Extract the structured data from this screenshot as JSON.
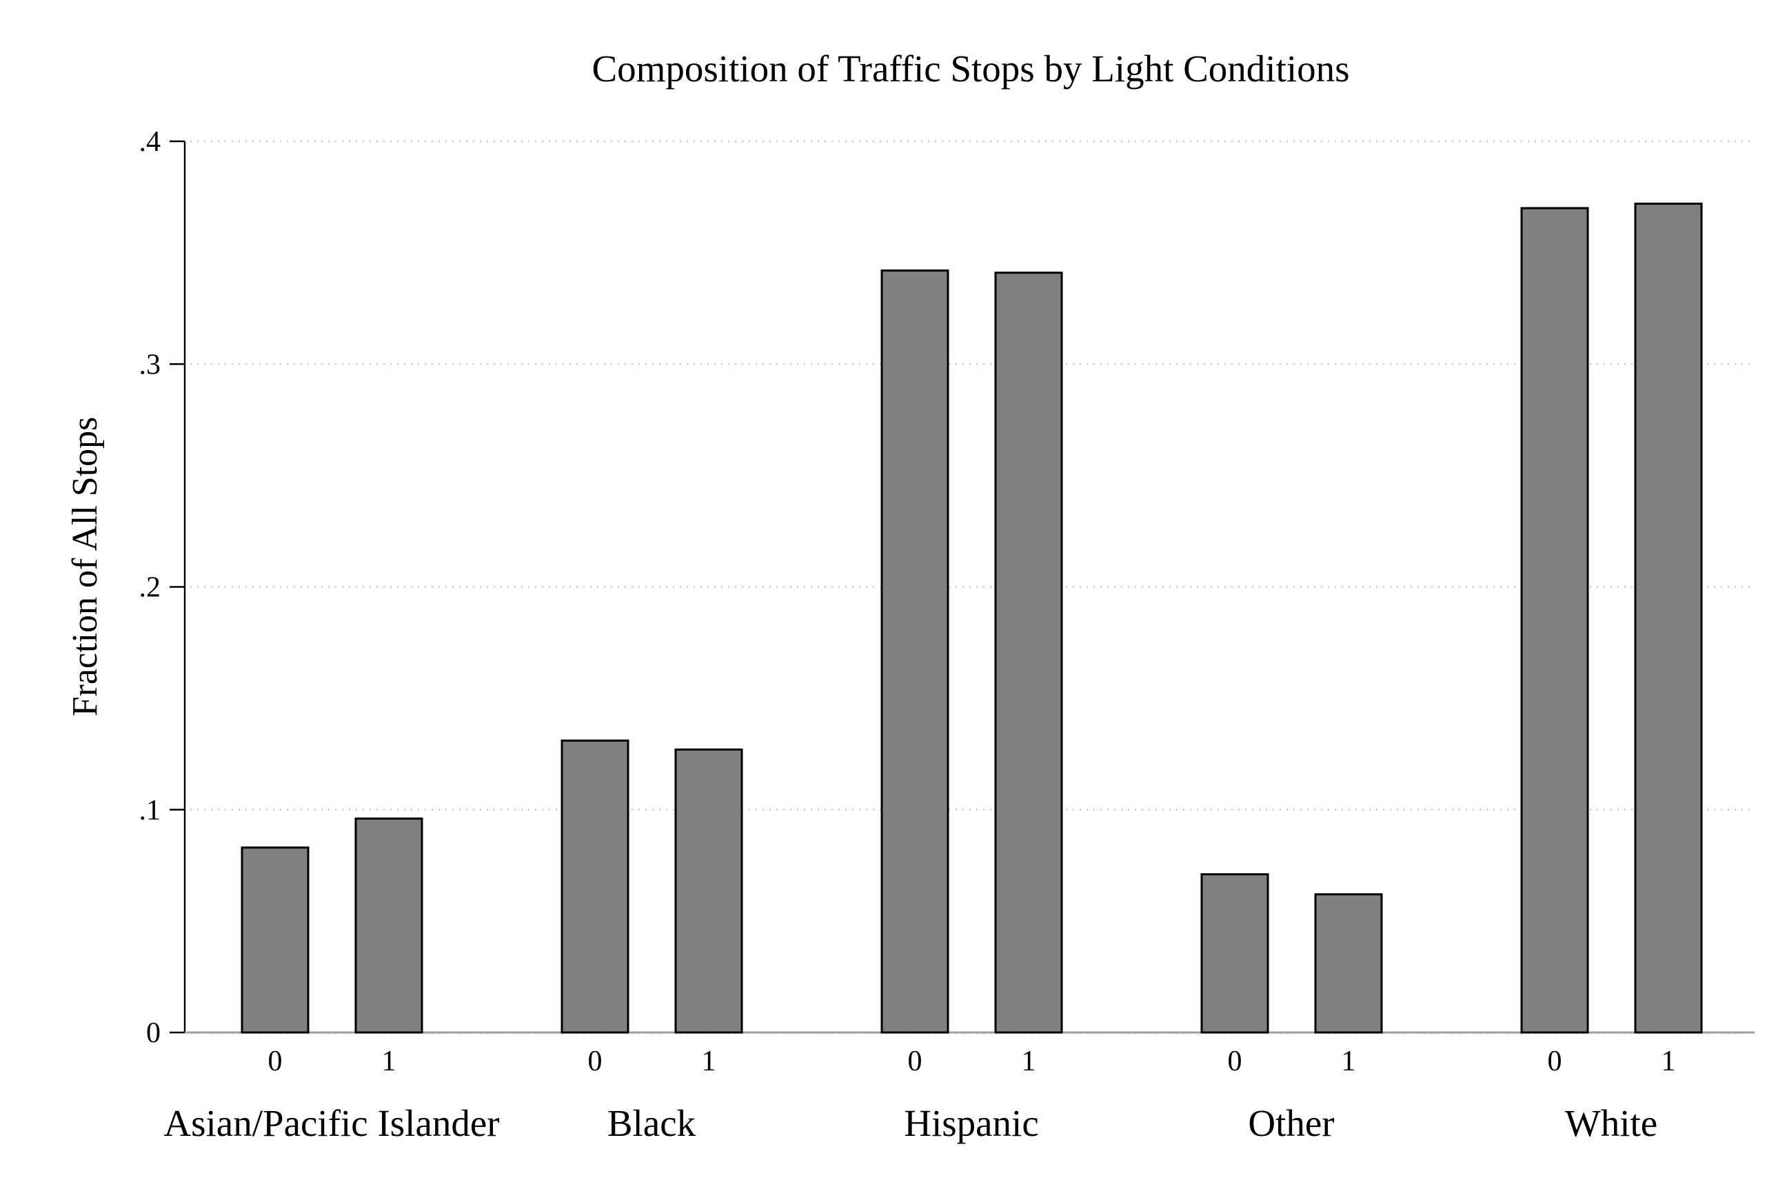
{
  "chart_data": {
    "type": "bar",
    "title": "Composition of Traffic Stops by Light Conditions",
    "ylabel": "Fraction of All Stops",
    "xlabel": "",
    "ylim": [
      0,
      0.4
    ],
    "yticks": [
      {
        "value": 0,
        "label": "0"
      },
      {
        "value": 0.1,
        "label": ".1"
      },
      {
        "value": 0.2,
        "label": ".2"
      },
      {
        "value": 0.3,
        "label": ".3"
      },
      {
        "value": 0.4,
        "label": ".4"
      }
    ],
    "grid": true,
    "legend": "none",
    "bar_color": "#808080",
    "categories": [
      "0",
      "1"
    ],
    "groups": [
      {
        "label": "Asian/Pacific Islander",
        "values": [
          0.083,
          0.096
        ]
      },
      {
        "label": "Black",
        "values": [
          0.131,
          0.127
        ]
      },
      {
        "label": "Hispanic",
        "values": [
          0.342,
          0.341
        ]
      },
      {
        "label": "Other",
        "values": [
          0.071,
          0.062
        ]
      },
      {
        "label": "White",
        "values": [
          0.37,
          0.372
        ]
      }
    ]
  }
}
